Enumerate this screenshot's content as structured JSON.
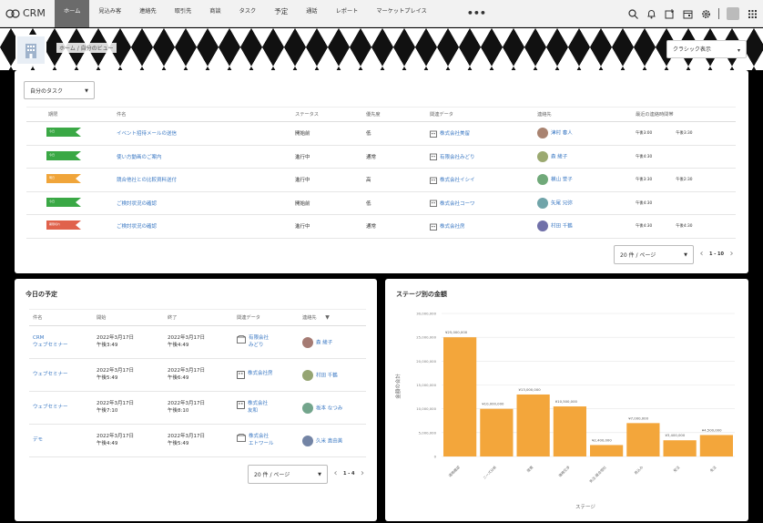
{
  "app": {
    "name": "CRM"
  },
  "nav": [
    {
      "label": "ホーム",
      "active": true
    },
    {
      "label": "見込み客"
    },
    {
      "label": "連絡先"
    },
    {
      "label": "取引先"
    },
    {
      "label": "商談"
    },
    {
      "label": "タスク"
    },
    {
      "label": "予定",
      "big": true
    },
    {
      "label": "通話"
    },
    {
      "label": "レポート"
    },
    {
      "label": "マーケットプレイス"
    }
  ],
  "nav_more": "•••",
  "banner": {
    "breadcrumb": "ホーム / 自分のビュー",
    "view_select": "クラシック表示"
  },
  "tasks": {
    "filter": "自分のタスク",
    "columns": [
      "期限",
      "件名",
      "ステータス",
      "優先度",
      "関連データ",
      "連絡先",
      "最近の連絡時間帯"
    ],
    "rows": [
      {
        "flag_color": "#3aa845",
        "flag_text": "今日",
        "subject": "イベント招待メールの送信",
        "status": "開始前",
        "priority": "低",
        "related": "株式会社美留",
        "contact": "津村 春人",
        "time1": "午後3:00",
        "time2": "午後3:30"
      },
      {
        "flag_color": "#3aa845",
        "flag_text": "今日",
        "subject": "使い方動画のご案内",
        "status": "進行中",
        "priority": "通常",
        "related": "有限会社みどり",
        "contact": "森 綾子",
        "time1": "午後4:30",
        "time2": ""
      },
      {
        "flag_color": "#f0a53a",
        "flag_text": "明日",
        "subject": "競合他社との比較資料送付",
        "status": "進行中",
        "priority": "高",
        "related": "株式会社イシイ",
        "contact": "横山 誉子",
        "time1": "午後3:30",
        "time2": "午後2:30"
      },
      {
        "flag_color": "#3aa845",
        "flag_text": "今日",
        "subject": "ご検討状況の確認",
        "status": "開始前",
        "priority": "低",
        "related": "株式会社コーワ",
        "contact": "矢尾 兄弥",
        "time1": "午後4:30",
        "time2": ""
      },
      {
        "flag_color": "#e0624c",
        "flag_text": "期限切れ",
        "subject": "ご検討状況の確認",
        "status": "進行中",
        "priority": "通常",
        "related": "株式会社房",
        "contact": "村田 千鶴",
        "time1": "午後4:30",
        "time2": "午後4:30"
      }
    ],
    "page_size": "20 件 / ページ",
    "range": "1 - 10"
  },
  "schedule": {
    "title": "今日の予定",
    "columns": [
      "件名",
      "開始",
      "終了",
      "関連データ",
      "連絡先"
    ],
    "rows": [
      {
        "subject1": "CRM",
        "subject2": "ウェブセミナー",
        "start1": "2022年3月17日",
        "start2": "午後3:49",
        "end1": "2022年3月17日",
        "end2": "午後4:49",
        "rel_type": "org",
        "rel1": "有限会社",
        "rel2": "みどり",
        "contact": "森 綾子"
      },
      {
        "subject1": "ウェブセミナー",
        "subject2": "",
        "start1": "2022年3月17日",
        "start2": "午後5:49",
        "end1": "2022年3月17日",
        "end2": "午後6:49",
        "rel_type": "bld",
        "rel1": "株式会社房",
        "rel2": "",
        "contact": "村田 千鶴"
      },
      {
        "subject1": "ウェブセミナー",
        "subject2": "",
        "start1": "2022年3月17日",
        "start2": "午後7:10",
        "end1": "2022年3月17日",
        "end2": "午後8:10",
        "rel_type": "bld",
        "rel1": "株式会社",
        "rel2": "友和",
        "contact": "坂本 なつみ"
      },
      {
        "subject1": "デモ",
        "subject2": "",
        "start1": "2022年3月17日",
        "start2": "午後4:49",
        "end1": "2022年3月17日",
        "end2": "午後5:49",
        "rel_type": "org",
        "rel1": "株式会社",
        "rel2": "エトワール",
        "contact": "久米 直由美"
      }
    ],
    "page_size": "20 件 / ページ",
    "range": "1 - 4"
  },
  "chart_data": {
    "type": "bar",
    "title": "ステージ別の金額",
    "xlabel": "ステージ",
    "ylabel": "金額の合計",
    "ylim": [
      0,
      30000000
    ],
    "yticks": [
      "0",
      "5,000,000",
      "10,000,000",
      "15,000,000",
      "20,000,000",
      "25,000,000",
      "30,000,000"
    ],
    "categories": [
      "適格確認",
      "ニーズ分析",
      "提案",
      "価格交渉",
      "失注-競合他社",
      "見込み",
      "受注",
      "失注"
    ],
    "values": [
      25000000,
      10000000,
      13000000,
      10500000,
      2400000,
      7000000,
      3400000,
      4500000
    ],
    "value_labels": [
      "¥25,000,000",
      "¥10,000,000",
      "¥13,000,000",
      "¥10,500,000",
      "¥2,400,000",
      "¥7,000,000",
      "¥3,400,000",
      "¥4,500,000"
    ],
    "bar_color": "#f3a63b",
    "grid": true
  }
}
